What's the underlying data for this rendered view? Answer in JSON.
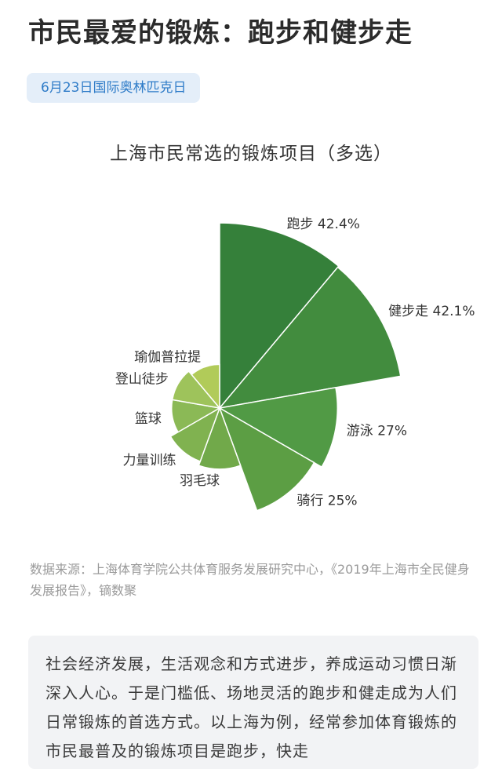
{
  "headline": "市民最爱的锻炼：跑步和健步走",
  "tag": "6月23日国际奥林匹克日",
  "chart_data": {
    "type": "pie",
    "variant": "rose",
    "title": "上海市民常选的锻炼项目（多选）",
    "categories": [
      "跑步",
      "健步走",
      "游泳",
      "骑行",
      "羽毛球",
      "力量训练",
      "篮球",
      "登山徒步",
      "瑜伽普拉提"
    ],
    "label_text": [
      "跑步 42.4%",
      "健步走 42.1%",
      "游泳 27%",
      "骑行 25%",
      "羽毛球",
      "力量训练",
      "篮球",
      "登山徒步",
      "瑜伽普拉提"
    ],
    "values": [
      42.4,
      42.1,
      27,
      25,
      14,
      13,
      11,
      11,
      10
    ],
    "colors": [
      "#35803a",
      "#428c3e",
      "#519a45",
      "#5c9e44",
      "#71a94a",
      "#80b250",
      "#8bb956",
      "#9ec35b",
      "#b1cb59"
    ]
  },
  "source": "数据来源：上海体育学院公共体育服务发展研究中心，《2019年上海市全民健身发展报告》，镝数聚",
  "note": "社会经济发展，生活观念和方式进步，养成运动习惯日渐深入人心。于是门槛低、场地灵活的跑步和健走成为人们日常锻炼的首选方式。以上海为例，经常参加体育锻炼的市民最普及的锻炼项目是跑步，快走"
}
